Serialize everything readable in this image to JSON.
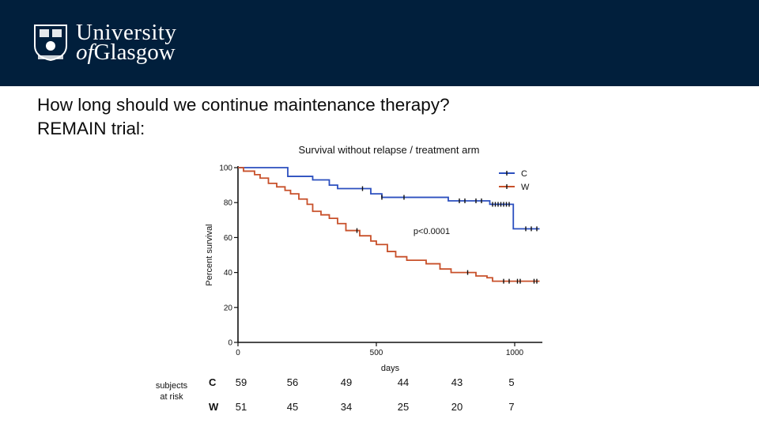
{
  "header": {
    "logo_line1": "University",
    "logo_line2_prefix": "of",
    "logo_line2_rest": "Glasgow",
    "background_color": "#011f3c"
  },
  "slide": {
    "title_line1": "How long should we continue maintenance therapy?",
    "title_line2": "REMAIN trial:"
  },
  "chart_data": {
    "type": "line",
    "title": "Survival without relapse  / treatment arm",
    "xlabel": "days",
    "ylabel": "Percent survival",
    "xlim": [
      0,
      1100
    ],
    "ylim": [
      0,
      100
    ],
    "x_ticks": [
      0,
      500,
      1000
    ],
    "y_ticks": [
      0,
      20,
      40,
      60,
      80,
      100
    ],
    "annotation": "p<0.0001",
    "legend_position": "top-right",
    "series": [
      {
        "name": "C",
        "color": "#2b4fbf",
        "steps": [
          [
            0,
            100
          ],
          [
            90,
            100
          ],
          [
            180,
            95
          ],
          [
            270,
            93
          ],
          [
            330,
            90
          ],
          [
            360,
            88
          ],
          [
            450,
            88
          ],
          [
            480,
            85
          ],
          [
            520,
            83
          ],
          [
            630,
            83
          ],
          [
            760,
            81
          ],
          [
            900,
            81
          ],
          [
            910,
            79
          ],
          [
            990,
            79
          ],
          [
            995,
            65
          ],
          [
            1090,
            65
          ]
        ],
        "censor_x": [
          450,
          520,
          600,
          800,
          820,
          860,
          880,
          920,
          930,
          940,
          950,
          960,
          970,
          980,
          1040,
          1060,
          1080
        ]
      },
      {
        "name": "W",
        "color": "#c8502a",
        "steps": [
          [
            0,
            100
          ],
          [
            20,
            98
          ],
          [
            60,
            96
          ],
          [
            80,
            94
          ],
          [
            110,
            91
          ],
          [
            140,
            89
          ],
          [
            170,
            87
          ],
          [
            190,
            85
          ],
          [
            220,
            82
          ],
          [
            250,
            79
          ],
          [
            270,
            75
          ],
          [
            300,
            73
          ],
          [
            330,
            71
          ],
          [
            360,
            68
          ],
          [
            390,
            64
          ],
          [
            440,
            61
          ],
          [
            480,
            58
          ],
          [
            500,
            56
          ],
          [
            540,
            52
          ],
          [
            570,
            49
          ],
          [
            610,
            47
          ],
          [
            680,
            45
          ],
          [
            730,
            42
          ],
          [
            770,
            40
          ],
          [
            860,
            38
          ],
          [
            900,
            37
          ],
          [
            920,
            35
          ],
          [
            1090,
            35
          ]
        ],
        "censor_x": [
          430,
          830,
          960,
          980,
          1010,
          1020,
          1070,
          1080
        ]
      }
    ],
    "risk_table": {
      "header": "subjects at risk",
      "rows": [
        {
          "label": "C",
          "values": [
            "59",
            "56",
            "49",
            "44",
            "43",
            "5"
          ]
        },
        {
          "label": "W",
          "values": [
            "51",
            "45",
            "34",
            "25",
            "20",
            "7"
          ]
        }
      ]
    }
  }
}
